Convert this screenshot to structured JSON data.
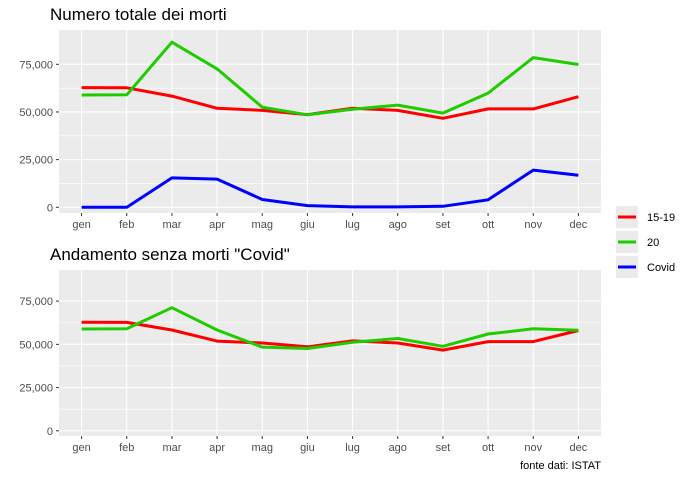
{
  "chart_data": [
    {
      "type": "line",
      "title": "Numero totale dei morti",
      "xlabel": "",
      "ylabel": "",
      "categories": [
        "gen",
        "feb",
        "mar",
        "apr",
        "mag",
        "giu",
        "lug",
        "ago",
        "set",
        "ott",
        "nov",
        "dec"
      ],
      "ylim": [
        -3000,
        93000
      ],
      "yticks": [
        0,
        25000,
        50000,
        75000
      ],
      "ytick_labels": [
        "0",
        "25,000",
        "50,000",
        "75,000"
      ],
      "grid": true,
      "series": [
        {
          "name": "15-19",
          "color": "#ff0000",
          "values": [
            62800,
            62700,
            58300,
            51900,
            50800,
            48600,
            52000,
            50800,
            46700,
            51600,
            51600,
            58000
          ]
        },
        {
          "name": "20",
          "color": "#1fcc00",
          "values": [
            58900,
            59000,
            86600,
            72600,
            52500,
            48500,
            51400,
            53600,
            49400,
            59900,
            78500,
            74900
          ]
        },
        {
          "name": "Covid",
          "color": "#0000ff",
          "values": [
            0,
            0,
            15400,
            14800,
            4100,
            900,
            200,
            200,
            500,
            3900,
            19500,
            16800
          ]
        }
      ]
    },
    {
      "type": "line",
      "title": "Andamento senza morti \"Covid\"",
      "xlabel": "",
      "ylabel": "",
      "categories": [
        "gen",
        "feb",
        "mar",
        "apr",
        "mag",
        "giu",
        "lug",
        "ago",
        "set",
        "ott",
        "nov",
        "dec"
      ],
      "ylim": [
        -3000,
        93000
      ],
      "yticks": [
        0,
        25000,
        50000,
        75000
      ],
      "ytick_labels": [
        "0",
        "25,000",
        "50,000",
        "75,000"
      ],
      "grid": true,
      "series": [
        {
          "name": "15-19",
          "color": "#ff0000",
          "values": [
            62800,
            62700,
            58300,
            51900,
            50800,
            48600,
            52000,
            50800,
            46700,
            51600,
            51600,
            58000
          ]
        },
        {
          "name": "20",
          "color": "#1fcc00",
          "values": [
            58900,
            59000,
            71200,
            58300,
            48400,
            47600,
            51200,
            53400,
            48900,
            56000,
            59000,
            58100
          ]
        }
      ]
    }
  ],
  "legend": {
    "placement": "right",
    "items": [
      {
        "label": "15-19",
        "color": "#ff0000"
      },
      {
        "label": "20",
        "color": "#1fcc00"
      },
      {
        "label": "Covid",
        "color": "#0000ff"
      }
    ]
  },
  "caption": "fonte dati: ISTAT",
  "colors": {
    "panel_background": "#ebebeb",
    "grid_major": "#ffffff",
    "tick_text": "#4d4d4d"
  }
}
